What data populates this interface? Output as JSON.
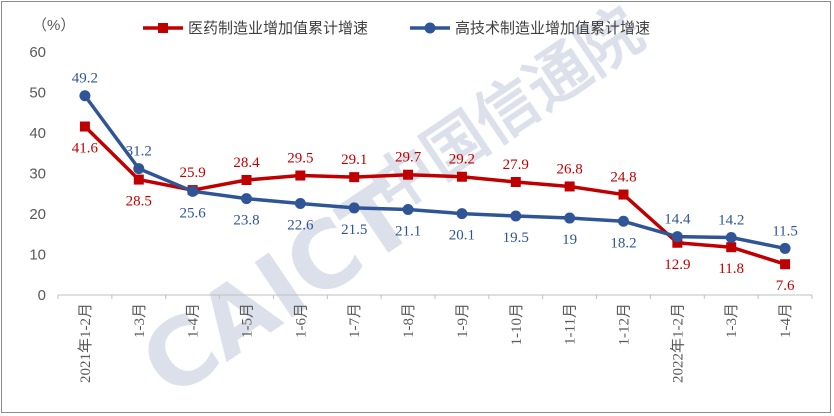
{
  "chart_data": {
    "type": "line",
    "unit_label": "（%）",
    "categories": [
      "2021年1-2月",
      "1-3月",
      "1-4月",
      "1-5月",
      "1-6月",
      "1-7月",
      "1-8月",
      "1-9月",
      "1-10月",
      "1-11月",
      "1-12月",
      "2022年1-2月",
      "1-3月",
      "1-4月"
    ],
    "ylim": [
      0,
      60
    ],
    "yticks": [
      0,
      10,
      20,
      30,
      40,
      50,
      60
    ],
    "grid": false,
    "legend_position": "top",
    "series": [
      {
        "name": "医药制造业增加值累计增速",
        "color": "#c00000",
        "marker": "square",
        "values": [
          41.6,
          28.5,
          25.9,
          28.4,
          29.5,
          29.1,
          29.7,
          29.2,
          27.9,
          26.8,
          24.8,
          12.9,
          11.8,
          7.6
        ],
        "labels": [
          "41.6",
          "28.5",
          "25.9",
          "28.4",
          "29.5",
          "29.1",
          "29.7",
          "29.2",
          "27.9",
          "26.8",
          "24.8",
          "12.9",
          "11.8",
          "7.6"
        ]
      },
      {
        "name": "高技术制造业增加值累计增速",
        "color": "#2f5597",
        "marker": "circle",
        "values": [
          49.2,
          31.2,
          25.6,
          23.8,
          22.6,
          21.5,
          21.1,
          20.1,
          19.5,
          19,
          18.2,
          14.4,
          14.2,
          11.5
        ],
        "labels": [
          "49.2",
          "31.2",
          "25.6",
          "23.8",
          "22.6",
          "21.5",
          "21.1",
          "20.1",
          "19.5",
          "19",
          "18.2",
          "14.4",
          "14.2",
          "11.5"
        ]
      }
    ]
  },
  "watermark": {
    "brand": "CAICT",
    "name": "中国信通院"
  }
}
